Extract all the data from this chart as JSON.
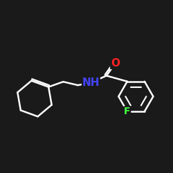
{
  "background_color": "#1a1a1a",
  "bond_color": "#ffffff",
  "atom_colors": {
    "N": "#4444ff",
    "O": "#ff2222",
    "F": "#44ff44",
    "C": "#ffffff"
  },
  "bond_width": 1.8,
  "font_size_atom": 11,
  "font_size_H": 9
}
